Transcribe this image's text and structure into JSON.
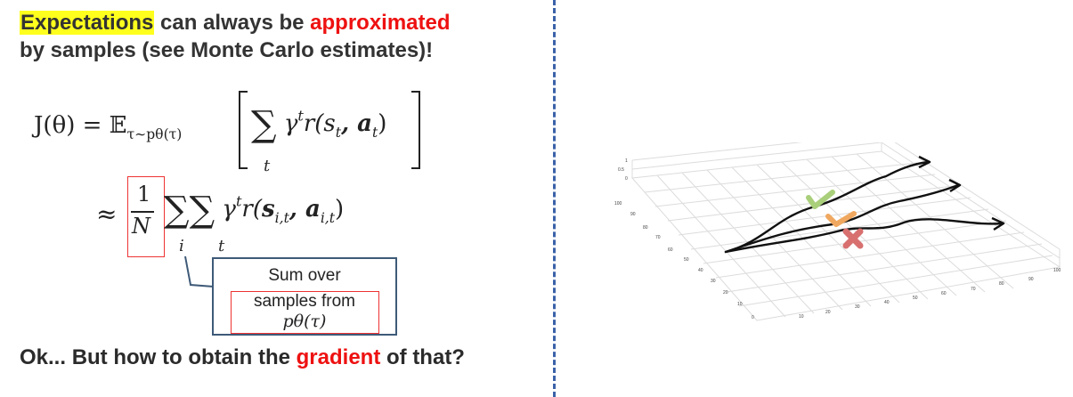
{
  "headline": {
    "word1": "Expectations",
    "part2": " can always be ",
    "word2": "approximated",
    "line2": "by samples (see Monte Carlo estimates)!"
  },
  "equation": {
    "lhs": "J(θ) = 𝔼",
    "expectation_sub": "τ∼pθ(τ)",
    "sum_symbol": "∑",
    "term1": "γ",
    "term1_sup": "t",
    "term1_rest": "r(s",
    "term1_st": "t",
    "term1_mid": ", a",
    "term1_at": "t",
    "term1_end": ")",
    "sum_index_t": "t",
    "approx": "≈",
    "frac_num": "1",
    "frac_den": "N",
    "sum_index_i": "i",
    "term2_sup": "t",
    "term2_sub_s": "i,t",
    "term2_sub_a": "i,t"
  },
  "callout": {
    "line1": "Sum over",
    "line2": "samples from",
    "line3": "pθ(τ)"
  },
  "footer": {
    "part1": "Ok... But how to obtain the ",
    "highlight": "gradient",
    "part2": " of that?"
  },
  "plot": {
    "z_ticks": [
      "1",
      "0.5",
      "0"
    ],
    "y_ticks": [
      "100",
      "90",
      "80",
      "70",
      "60",
      "50",
      "40",
      "30",
      "20",
      "10",
      "0"
    ],
    "x_ticks": [
      "10",
      "20",
      "30",
      "40",
      "50",
      "60",
      "70",
      "80",
      "90",
      "100"
    ],
    "colors": {
      "check_green": "#a9cf7a",
      "check_orange": "#f0a860",
      "cross_red": "#d87070",
      "curve": "#111111"
    }
  }
}
